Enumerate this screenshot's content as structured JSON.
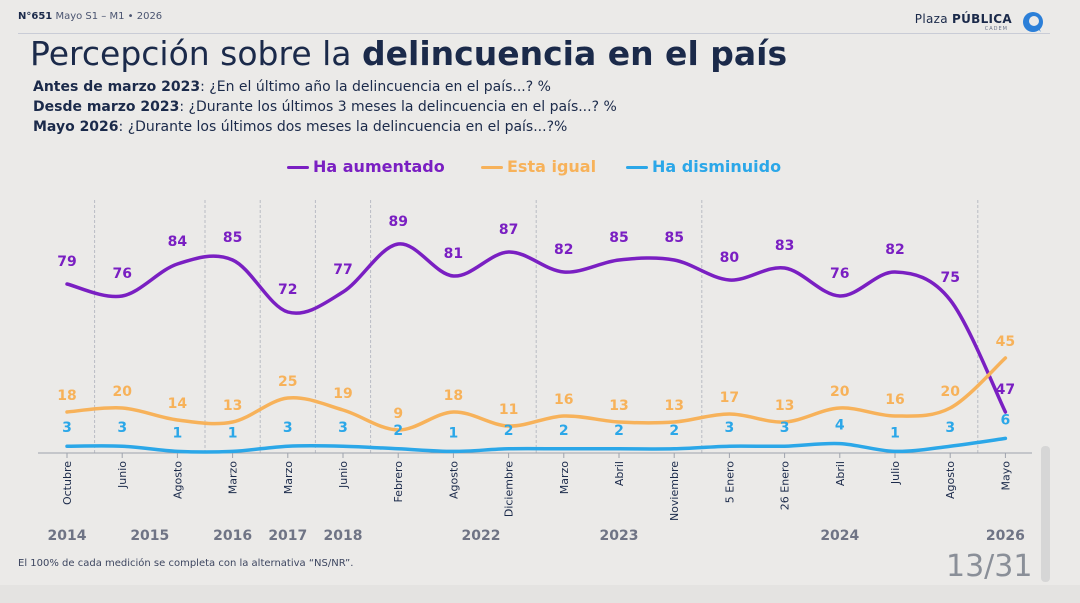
{
  "header": {
    "issue_number": "N°651",
    "issue_info": "Mayo S1 – M1 • 2026",
    "brand_light": "Plaza",
    "brand_bold": "PÚBLICA",
    "brand_sub": "CADEM"
  },
  "title": {
    "regular": "Percepción sobre la ",
    "bold": "delincuencia en el país"
  },
  "subtitles": [
    {
      "bold": "Antes de marzo 2023",
      "text": ": ¿En el último año la delincuencia en el país...? %"
    },
    {
      "bold": "Desde marzo 2023",
      "text": ": ¿Durante los últimos 3 meses la delincuencia en el país...? %"
    },
    {
      "bold": "Mayo 2026",
      "text": ": ¿Durante los últimos dos meses la delincuencia en el país...?%"
    }
  ],
  "footer": {
    "note": "El 100% de cada medición se completa con la alternativa “NS/NR”.",
    "page": "13/31"
  },
  "chart_data": {
    "type": "line",
    "categories": [
      "Octubre",
      "Junio",
      "Agosto",
      "Marzo",
      "Marzo",
      "Junio",
      "Febrero",
      "Agosto",
      "Diciembre",
      "Marzo",
      "Abril",
      "Noviembre",
      "5 Enero",
      "26 Enero",
      "Abril",
      "Julio",
      "Agosto",
      "Mayo"
    ],
    "years": [
      {
        "label": "2014",
        "index": 0
      },
      {
        "label": "2015",
        "index": 1.5
      },
      {
        "label": "2016",
        "index": 3
      },
      {
        "label": "2017",
        "index": 4
      },
      {
        "label": "2018",
        "index": 5
      },
      {
        "label": "2022",
        "index": 7.5
      },
      {
        "label": "2023",
        "index": 10
      },
      {
        "label": "2024",
        "index": 14
      },
      {
        "label": "2026",
        "index": 17
      }
    ],
    "year_separators_after": [
      0,
      2,
      3,
      4,
      5,
      8,
      11,
      16
    ],
    "series": [
      {
        "name": "Ha aumentado",
        "color": "#7a1fc2",
        "values": [
          79,
          76,
          84,
          85,
          72,
          77,
          89,
          81,
          87,
          82,
          85,
          85,
          80,
          83,
          76,
          82,
          75,
          47
        ]
      },
      {
        "name": "Esta igual",
        "color": "#f7b25a",
        "values": [
          18,
          20,
          14,
          13,
          25,
          19,
          9,
          18,
          11,
          16,
          13,
          13,
          17,
          13,
          20,
          16,
          20,
          45
        ]
      },
      {
        "name": "Ha disminuido",
        "color": "#2ba7e8",
        "values": [
          3,
          3,
          1,
          1,
          3,
          3,
          2,
          1,
          2,
          2,
          2,
          2,
          3,
          3,
          4,
          1,
          3,
          6
        ]
      }
    ],
    "ylim": [
      0,
      100
    ],
    "grid": false,
    "legend_position": "top-center"
  }
}
